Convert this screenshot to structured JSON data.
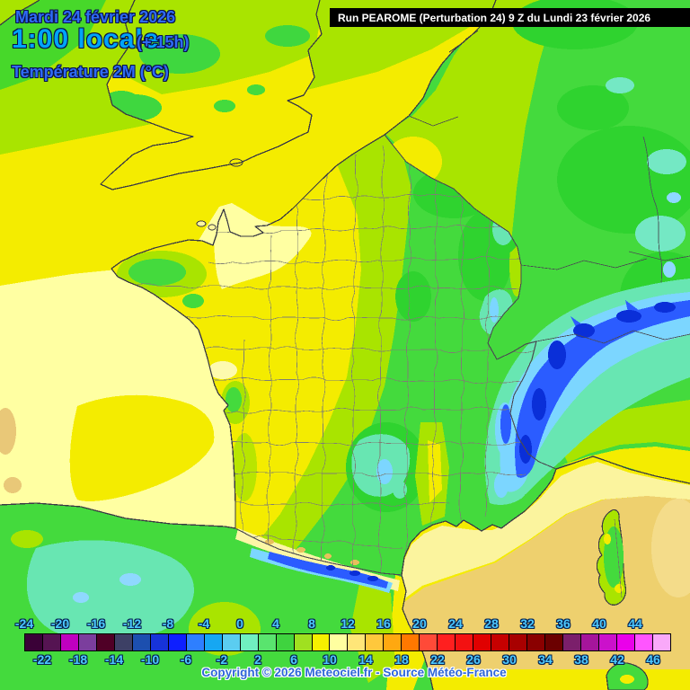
{
  "header": {
    "date": "Mardi 24 février 2026",
    "time": "1:00 locale",
    "offset": "(+ 15h)",
    "parameter": "Température 2M (°C)",
    "run": "Run PEAROME (Perturbation 24) 9 Z du Lundi 23 février 2026"
  },
  "footer": {
    "copyright": "Copyright © 2026 Meteociel.fr - Source Météo-France"
  },
  "colorbar": {
    "unit": "°C",
    "min": -24,
    "max": 46,
    "step": 2,
    "top_labels": [
      "-24",
      "-20",
      "-16",
      "-12",
      "-8",
      "-4",
      "0",
      "4",
      "8",
      "12",
      "16",
      "20",
      "24",
      "28",
      "32",
      "36",
      "40",
      "44"
    ],
    "bottom_labels": [
      "-22",
      "-18",
      "-14",
      "-10",
      "-6",
      "-2",
      "2",
      "6",
      "10",
      "14",
      "18",
      "22",
      "26",
      "30",
      "34",
      "38",
      "42",
      "46"
    ],
    "cell_colors": [
      "#3a0137",
      "#551452",
      "#bf00bf",
      "#7b3e9d",
      "#4f0026",
      "#3d4065",
      "#1c4faf",
      "#1733d9",
      "#0e1fff",
      "#2e7fff",
      "#16a7f2",
      "#5bcdf0",
      "#70efc0",
      "#59e46e",
      "#3fd33f",
      "#a0e020",
      "#f6f000",
      "#ffffa0",
      "#ffe678",
      "#ffc83c",
      "#ffa810",
      "#ff7800",
      "#ff4a38",
      "#ff1f1f",
      "#f31111",
      "#e00000",
      "#c60000",
      "#a80000",
      "#8a0000",
      "#6b0000",
      "#7b1f6b",
      "#a5159b",
      "#cb11cb",
      "#ea00ea",
      "#ff55ff",
      "#f9a9f9"
    ]
  },
  "map_palette": {
    "sea_mild_pale_yellow": "#ffffa2",
    "sea_yellow": "#f4ec00",
    "sea_warm_tan": "#eed06e",
    "land_green": "#44da3d",
    "yellow_green": "#a9e400",
    "mountain_aqua": "#68e6b2",
    "mountain_cyan": "#7cd6ff",
    "mountain_blue": "#2b5cff",
    "mountain_dark_blue": "#0a2fd8",
    "coastline": "#3a3a44",
    "department_border": "#7e7e74",
    "banner_bg": "#000000",
    "banner_text": "#ffffff",
    "title_blue": "#2e6bf5",
    "time_cyan": "#00a4f8",
    "scale_label_cyan": "#4cc9ff",
    "copyright_blue": "#2e66d8"
  }
}
